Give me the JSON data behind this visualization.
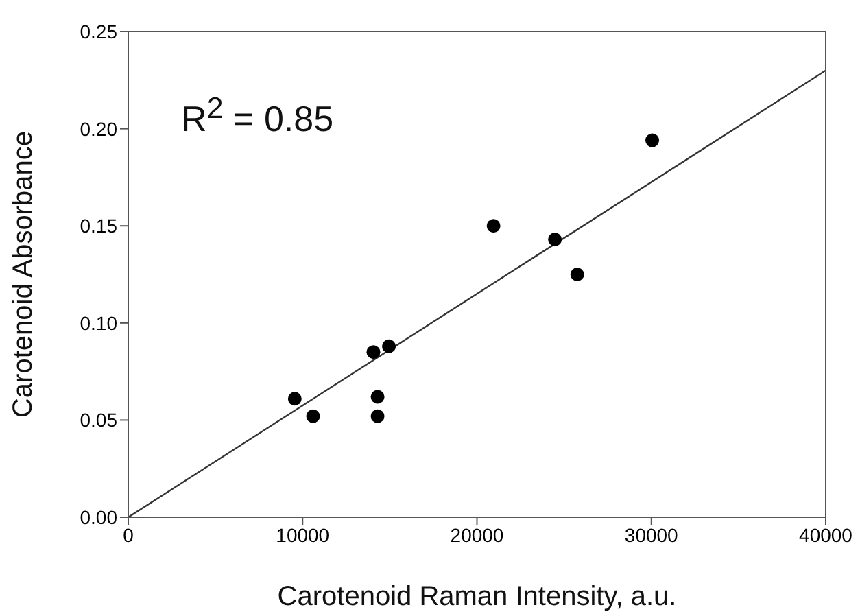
{
  "chart_data": {
    "type": "scatter",
    "xlabel": "Carotenoid Raman Intensity, a.u.",
    "ylabel": "Carotenoid Absorbance",
    "annotations": [
      "R$^{2}$ = 0.85"
    ],
    "xlim": [
      0,
      40000
    ],
    "xticks": [
      0,
      10000,
      20000,
      30000,
      40000
    ],
    "ylim": [
      0,
      0.25
    ],
    "yticks": [
      {
        "value": 0,
        "label": "0.00"
      },
      {
        "value": 0.05,
        "label": "0.05"
      },
      {
        "value": 0.1,
        "label": "0.10"
      },
      {
        "value": 0.15,
        "label": "0.15"
      },
      {
        "value": 0.2,
        "label": "0.20"
      },
      {
        "value": 0.25,
        "label": "0.25"
      }
    ],
    "marker": "circle",
    "series": [
      {
        "color": "#000000",
        "x": [
          9550,
          10600,
          14060,
          14300,
          14300,
          14950,
          20950,
          24470,
          25750,
          30050
        ],
        "values": [
          0.061,
          0.052,
          0.085,
          0.062,
          0.052,
          0.088,
          0.15,
          0.143,
          0.125,
          0.194
        ]
      },
      {
        "type": "line",
        "color": "#333333",
        "marker": "none",
        "line_style": "solid",
        "x": [
          0,
          40000
        ],
        "values": [
          0,
          0.23
        ]
      }
    ]
  }
}
